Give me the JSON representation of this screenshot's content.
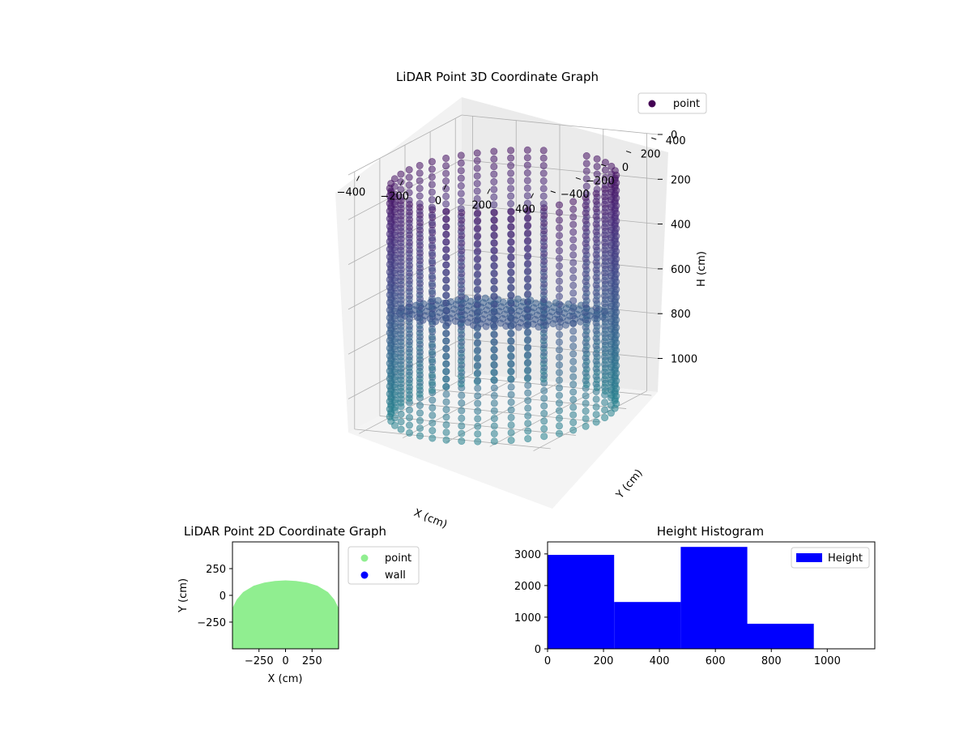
{
  "chart_data": [
    {
      "type": "scatter",
      "title": "LiDAR Point 3D Coordinate Graph",
      "xlabel": "X (cm)",
      "ylabel": "Y (cm)",
      "zlabel": "H (cm)",
      "x_ticks": [
        "−400",
        "−200",
        "0",
        "200",
        "400"
      ],
      "y_ticks": [
        "−400",
        "−200",
        "0",
        "200",
        "400"
      ],
      "z_ticks": [
        "0",
        "200",
        "400",
        "600",
        "800",
        "1000"
      ],
      "xlim": [
        -450,
        450
      ],
      "ylim": [
        -450,
        450
      ],
      "zlim": [
        0,
        1150
      ],
      "z_inverted": true,
      "legend": [
        {
          "label": "point",
          "color": "#440154"
        }
      ],
      "legend_position": "top-right",
      "colormap": "viridis",
      "series": [
        {
          "name": "point",
          "description_values": {
            "shape": "cylinder-wall",
            "radius": 450,
            "height_range": [
              0,
              1150
            ],
            "slope_floor_range": [
              600,
              780
            ]
          }
        }
      ]
    },
    {
      "type": "scatter",
      "title": "LiDAR Point 2D Coordinate Graph",
      "xlabel": "X (cm)",
      "ylabel": "Y (cm)",
      "x_ticks": [
        "−250",
        "0",
        "250"
      ],
      "y_ticks": [
        "250",
        "0",
        "−250"
      ],
      "xlim": [
        -500,
        500
      ],
      "ylim": [
        -500,
        500
      ],
      "legend": [
        {
          "label": "point",
          "color": "#90ee90"
        },
        {
          "label": "wall",
          "color": "#0000ff"
        }
      ],
      "legend_position": "outside-right",
      "region_boundary_xy": [
        [
          -500,
          -500
        ],
        [
          -500,
          -120
        ],
        [
          -460,
          -40
        ],
        [
          -400,
          30
        ],
        [
          -300,
          90
        ],
        [
          -200,
          120
        ],
        [
          -100,
          135
        ],
        [
          0,
          140
        ],
        [
          100,
          135
        ],
        [
          200,
          120
        ],
        [
          300,
          90
        ],
        [
          400,
          30
        ],
        [
          460,
          -40
        ],
        [
          500,
          -120
        ],
        [
          500,
          -500
        ]
      ]
    },
    {
      "type": "bar",
      "title": "Height Histogram",
      "x_ticks": [
        "0",
        "200",
        "400",
        "600",
        "800",
        "1000"
      ],
      "y_ticks": [
        "0",
        "1000",
        "2000",
        "3000"
      ],
      "xlim": [
        0,
        1170
      ],
      "ylim": [
        0,
        3380
      ],
      "bins": [
        {
          "start": 0,
          "end": 238,
          "count": 2970
        },
        {
          "start": 238,
          "end": 476,
          "count": 1480
        },
        {
          "start": 476,
          "end": 714,
          "count": 3220
        },
        {
          "start": 714,
          "end": 952,
          "count": 790
        }
      ],
      "color": "#0000ff",
      "legend": [
        {
          "label": "Height",
          "color": "#0000ff"
        }
      ],
      "legend_position": "top-right"
    }
  ]
}
